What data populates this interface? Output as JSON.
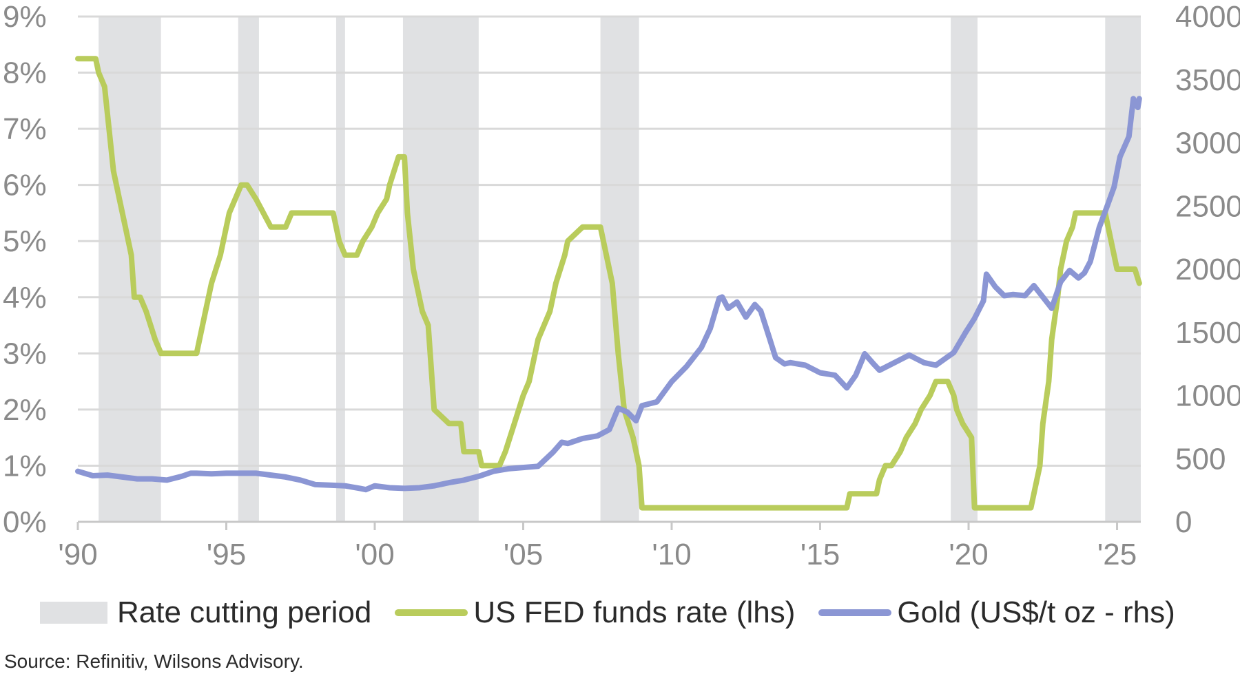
{
  "chart_data": {
    "type": "line",
    "title": "",
    "xlabel": "",
    "ylabel_left": "",
    "ylabel_right": "",
    "x_range": [
      1990,
      2025.8
    ],
    "x_ticks": [
      {
        "value": 1990,
        "label": "'90"
      },
      {
        "value": 1995,
        "label": "'95"
      },
      {
        "value": 2000,
        "label": "'00"
      },
      {
        "value": 2005,
        "label": "'05"
      },
      {
        "value": 2010,
        "label": "'10"
      },
      {
        "value": 2015,
        "label": "'15"
      },
      {
        "value": 2020,
        "label": "'20"
      },
      {
        "value": 2025,
        "label": "'25"
      }
    ],
    "y_left": {
      "min": 0,
      "max": 9,
      "ticks": [
        "0%",
        "1%",
        "2%",
        "3%",
        "4%",
        "5%",
        "6%",
        "7%",
        "8%",
        "9%"
      ],
      "tick_values": [
        0,
        1,
        2,
        3,
        4,
        5,
        6,
        7,
        8,
        9
      ]
    },
    "y_right": {
      "min": 0,
      "max": 4000,
      "ticks": [
        "0",
        "500",
        "1000",
        "1500",
        "2000",
        "2500",
        "3000",
        "3500",
        "4000"
      ],
      "tick_values": [
        0,
        500,
        1000,
        1500,
        2000,
        2500,
        3000,
        3500,
        4000
      ]
    },
    "shaded_periods_name": "Rate cutting period",
    "shaded_periods": [
      [
        1990.7,
        1992.8
      ],
      [
        1995.4,
        1996.1
      ],
      [
        1998.7,
        1999.0
      ],
      [
        2000.95,
        2003.5
      ],
      [
        2007.6,
        2008.9
      ],
      [
        2019.4,
        2020.3
      ],
      [
        2024.6,
        2025.8
      ]
    ],
    "series": [
      {
        "name": "US FED funds rate (lhs)",
        "axis": "left",
        "color": "#b9cc5c",
        "x": [
          1990.0,
          1990.6,
          1990.7,
          1990.9,
          1991.0,
          1991.2,
          1991.4,
          1991.6,
          1991.8,
          1991.9,
          1992.1,
          1992.3,
          1992.6,
          1992.8,
          1993.0,
          1993.5,
          1994.0,
          1994.3,
          1994.5,
          1994.8,
          1995.1,
          1995.5,
          1995.7,
          1996.0,
          1996.5,
          1997.0,
          1997.2,
          1998.0,
          1998.6,
          1998.8,
          1999.0,
          1999.4,
          1999.6,
          1999.9,
          2000.1,
          2000.4,
          2000.5,
          2000.8,
          2001.0,
          2001.1,
          2001.3,
          2001.6,
          2001.8,
          2002.0,
          2002.5,
          2002.9,
          2003.0,
          2003.5,
          2003.6,
          2004.2,
          2004.4,
          2004.7,
          2005.0,
          2005.2,
          2005.5,
          2005.9,
          2006.1,
          2006.4,
          2006.5,
          2007.0,
          2007.6,
          2007.8,
          2008.0,
          2008.2,
          2008.4,
          2008.7,
          2008.9,
          2009.0,
          2015.9,
          2016.0,
          2016.9,
          2017.0,
          2017.2,
          2017.4,
          2017.7,
          2017.9,
          2018.2,
          2018.4,
          2018.7,
          2018.9,
          2019.1,
          2019.3,
          2019.5,
          2019.6,
          2019.8,
          2020.1,
          2020.2,
          2022.1,
          2022.2,
          2022.4,
          2022.5,
          2022.7,
          2022.8,
          2023.0,
          2023.1,
          2023.3,
          2023.5,
          2023.6,
          2024.6,
          2024.7,
          2024.9,
          2025.0,
          2025.6,
          2025.75
        ],
        "values": [
          8.25,
          8.25,
          8.0,
          7.75,
          7.25,
          6.25,
          5.75,
          5.25,
          4.75,
          4.0,
          4.0,
          3.75,
          3.25,
          3.0,
          3.0,
          3.0,
          3.0,
          3.75,
          4.25,
          4.75,
          5.5,
          6.0,
          6.0,
          5.75,
          5.25,
          5.25,
          5.5,
          5.5,
          5.5,
          5.0,
          4.75,
          4.75,
          5.0,
          5.25,
          5.5,
          5.75,
          6.0,
          6.5,
          6.5,
          5.5,
          4.5,
          3.75,
          3.5,
          2.0,
          1.75,
          1.75,
          1.25,
          1.25,
          1.0,
          1.0,
          1.25,
          1.75,
          2.25,
          2.5,
          3.25,
          3.75,
          4.25,
          4.75,
          5.0,
          5.25,
          5.25,
          4.75,
          4.25,
          3.0,
          2.0,
          1.5,
          1.0,
          0.25,
          0.25,
          0.5,
          0.5,
          0.75,
          1.0,
          1.0,
          1.25,
          1.5,
          1.75,
          2.0,
          2.25,
          2.5,
          2.5,
          2.5,
          2.25,
          2.0,
          1.75,
          1.5,
          0.25,
          0.25,
          0.5,
          1.0,
          1.75,
          2.5,
          3.25,
          4.0,
          4.5,
          5.0,
          5.25,
          5.5,
          5.5,
          5.25,
          4.75,
          4.5,
          4.5,
          4.25
        ]
      },
      {
        "name": "Gold (US$/t oz - rhs)",
        "axis": "right",
        "color": "#8b96d4",
        "x": [
          1990.0,
          1990.5,
          1991.0,
          1991.5,
          1992.0,
          1992.5,
          1993.0,
          1993.5,
          1993.8,
          1994.0,
          1994.5,
          1995.0,
          1995.5,
          1996.0,
          1996.5,
          1997.0,
          1997.5,
          1998.0,
          1998.5,
          1999.0,
          1999.5,
          1999.7,
          2000.0,
          2000.5,
          2001.0,
          2001.5,
          2002.0,
          2002.5,
          2003.0,
          2003.5,
          2004.0,
          2004.5,
          2005.0,
          2005.5,
          2006.0,
          2006.3,
          2006.5,
          2007.0,
          2007.5,
          2007.9,
          2008.2,
          2008.5,
          2008.8,
          2009.0,
          2009.5,
          2010.0,
          2010.5,
          2011.0,
          2011.3,
          2011.6,
          2011.7,
          2011.9,
          2012.2,
          2012.5,
          2012.8,
          2013.0,
          2013.3,
          2013.5,
          2013.8,
          2014.0,
          2014.5,
          2015.0,
          2015.5,
          2015.9,
          2016.2,
          2016.5,
          2016.8,
          2017.0,
          2017.5,
          2018.0,
          2018.5,
          2018.9,
          2019.2,
          2019.5,
          2019.9,
          2020.2,
          2020.5,
          2020.6,
          2020.9,
          2021.2,
          2021.5,
          2021.9,
          2022.2,
          2022.5,
          2022.8,
          2023.1,
          2023.4,
          2023.7,
          2023.9,
          2024.1,
          2024.4,
          2024.7,
          2024.9,
          2025.1,
          2025.4,
          2025.55,
          2025.7,
          2025.75
        ],
        "values": [
          400,
          365,
          370,
          355,
          340,
          340,
          330,
          360,
          385,
          385,
          380,
          385,
          385,
          385,
          370,
          355,
          330,
          295,
          290,
          285,
          265,
          255,
          285,
          270,
          265,
          270,
          285,
          310,
          330,
          360,
          400,
          420,
          430,
          440,
          550,
          630,
          620,
          660,
          680,
          730,
          900,
          870,
          800,
          920,
          950,
          1110,
          1230,
          1380,
          1530,
          1770,
          1780,
          1690,
          1740,
          1620,
          1720,
          1670,
          1450,
          1300,
          1250,
          1260,
          1240,
          1180,
          1160,
          1060,
          1160,
          1330,
          1250,
          1200,
          1260,
          1320,
          1260,
          1240,
          1290,
          1340,
          1500,
          1610,
          1750,
          1960,
          1860,
          1790,
          1800,
          1790,
          1870,
          1780,
          1690,
          1900,
          1990,
          1930,
          1970,
          2060,
          2330,
          2520,
          2650,
          2890,
          3050,
          3350,
          3280,
          3350
        ]
      }
    ],
    "legend_position": "bottom"
  },
  "legend": {
    "shaded_label": "Rate cutting period",
    "fed_label": "US FED funds rate (lhs)",
    "gold_label": "Gold (US$/t oz - rhs)"
  },
  "colors": {
    "shade": "#e0e1e3",
    "grid": "#d9d9d9",
    "fed": "#b9cc5c",
    "gold": "#8b96d4",
    "axis": "#c8c8c8"
  },
  "source_text": "Source: Refinitiv, Wilsons Advisory."
}
